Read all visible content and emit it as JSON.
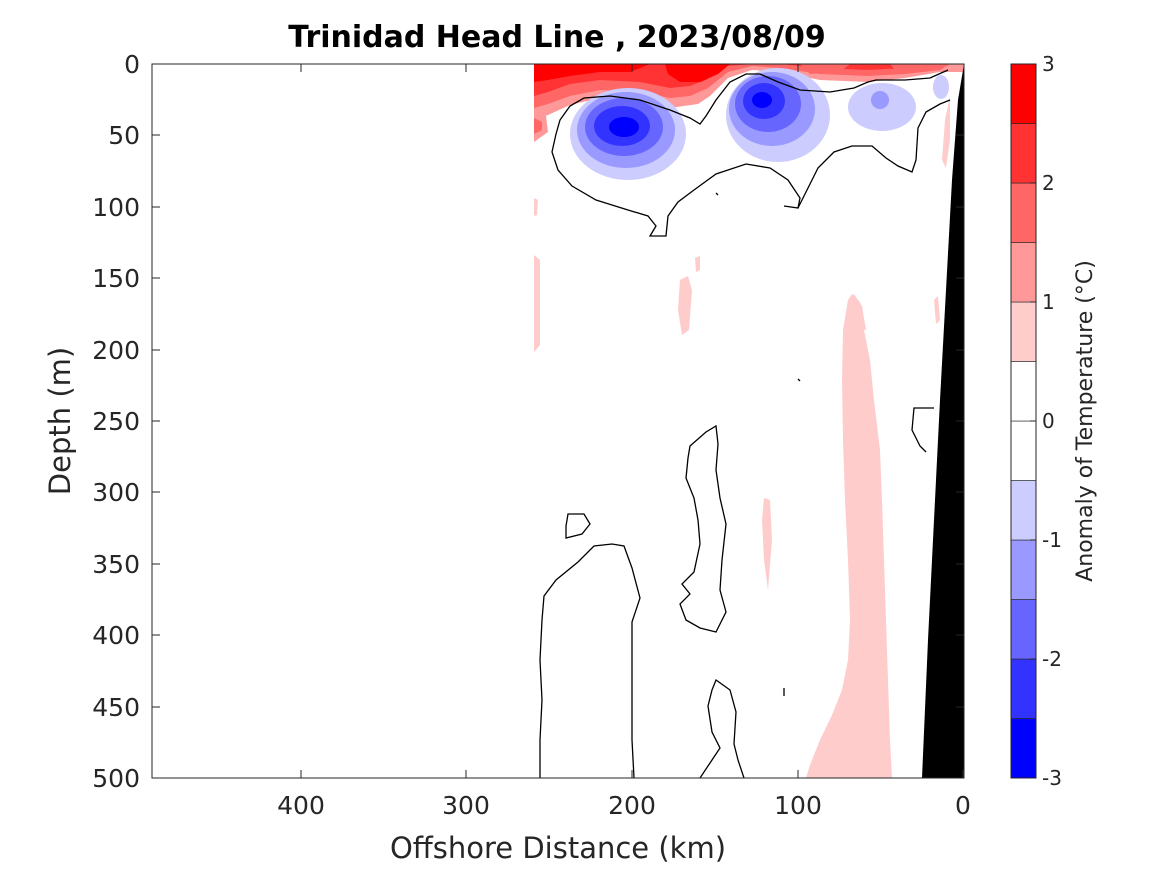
{
  "chart_data": {
    "type": "contour",
    "title": "Trinidad Head Line , 2023/08/09",
    "xlabel": "Offshore Distance (km)",
    "ylabel": "Depth (m)",
    "xlim": [
      490,
      0
    ],
    "ylim": [
      0,
      500
    ],
    "x_reversed": true,
    "y_reversed": true,
    "x_ticks": [
      400,
      300,
      200,
      100,
      0
    ],
    "y_ticks": [
      0,
      50,
      100,
      150,
      200,
      250,
      300,
      350,
      400,
      450,
      500
    ],
    "grid": false,
    "colorbar": {
      "label": "Anomaly of Temperature (°C)",
      "range": [
        -3,
        3
      ],
      "step": 0.5,
      "ticks": [
        3,
        2,
        1,
        0,
        -1,
        -2,
        -3
      ],
      "colors": [
        "#0000ff",
        "#3333ff",
        "#6666ff",
        "#9999ff",
        "#ccccff",
        "#ffffff",
        "#ffffff",
        "#ffcccc",
        "#ff9999",
        "#ff6666",
        "#ff3333",
        "#ff0000"
      ]
    },
    "data_extent_km": 260,
    "features": [
      {
        "kind": "warm-surface-layer",
        "anomaly": 2.5,
        "x": [
          260,
          0
        ],
        "depth": [
          0,
          30
        ]
      },
      {
        "kind": "cold-core",
        "anomaly": -2.5,
        "center_x": 200,
        "center_depth": 45
      },
      {
        "kind": "cold-core",
        "anomaly": -2.5,
        "center_x": 122,
        "center_depth": 27
      },
      {
        "kind": "cold-core",
        "anomaly": -1,
        "center_x": 50,
        "center_depth": 25
      },
      {
        "kind": "warm-band",
        "anomaly": 0.5,
        "x": [
          95,
          45
        ],
        "depth": [
          160,
          500
        ]
      }
    ],
    "bathymetry": [
      [
        0,
        0
      ],
      [
        10,
        80
      ],
      [
        20,
        300
      ],
      [
        27,
        500
      ]
    ]
  }
}
